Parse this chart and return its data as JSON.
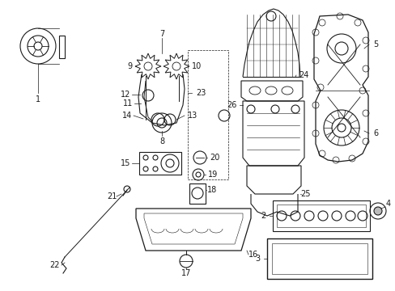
{
  "bg_color": "#ffffff",
  "line_color": "#1a1a1a",
  "fig_width": 4.89,
  "fig_height": 3.6,
  "dpi": 100,
  "label_fs": 7.0
}
